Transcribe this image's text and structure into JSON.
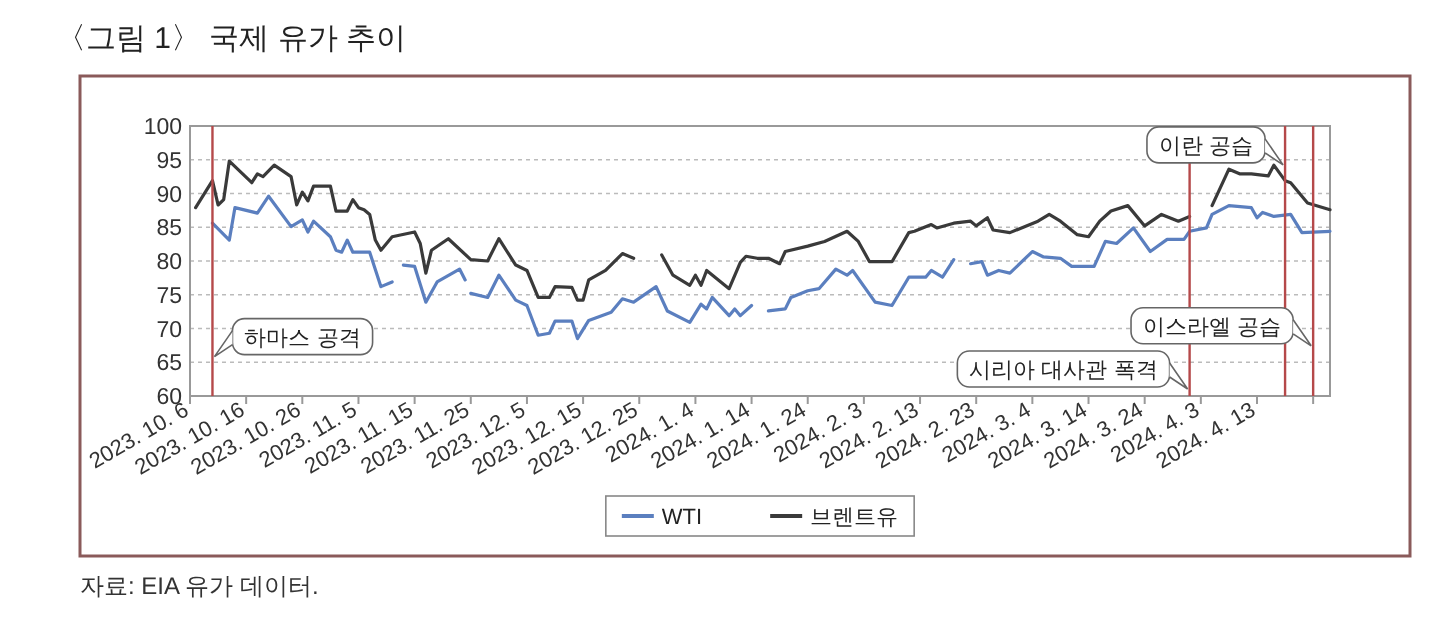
{
  "chart_data": {
    "type": "line",
    "title": "〈그림 1〉 국제 유가 추이",
    "annotations": [
      "자료: EIA 유가 데이터."
    ],
    "xlim": [
      "2023-10-06",
      "2024-04-26"
    ],
    "ylim": [
      60,
      100
    ],
    "yticks": [
      60,
      65,
      70,
      75,
      80,
      85,
      90,
      95,
      100
    ],
    "xticks": [
      {
        "value": "2023-10-06",
        "label": "2023. 10. 6"
      },
      {
        "value": "2023-10-16",
        "label": "2023. 10. 16"
      },
      {
        "value": "2023-10-26",
        "label": "2023. 10. 26"
      },
      {
        "value": "2023-11-05",
        "label": "2023. 11. 5"
      },
      {
        "value": "2023-11-15",
        "label": "2023. 11. 15"
      },
      {
        "value": "2023-11-25",
        "label": "2023. 11. 25"
      },
      {
        "value": "2023-12-05",
        "label": "2023. 12. 5"
      },
      {
        "value": "2023-12-15",
        "label": "2023. 12. 15"
      },
      {
        "value": "2023-12-25",
        "label": "2023. 12. 25"
      },
      {
        "value": "2024-01-04",
        "label": "2024. 1. 4"
      },
      {
        "value": "2024-01-14",
        "label": "2024. 1. 14"
      },
      {
        "value": "2024-01-24",
        "label": "2024. 1. 24"
      },
      {
        "value": "2024-02-03",
        "label": "2024. 2. 3"
      },
      {
        "value": "2024-02-13",
        "label": "2024. 2. 13"
      },
      {
        "value": "2024-02-23",
        "label": "2024. 2. 23"
      },
      {
        "value": "2024-03-04",
        "label": "2024. 3. 4"
      },
      {
        "value": "2024-03-14",
        "label": "2024. 3. 14"
      },
      {
        "value": "2024-03-24",
        "label": "2024. 3. 24"
      },
      {
        "value": "2024-04-03",
        "label": "2024. 4. 3"
      },
      {
        "value": "2024-04-13",
        "label": "2024. 4. 13"
      },
      {
        "value": "2024-04-23",
        "label": null
      }
    ],
    "grid": "y",
    "legend": "bottom",
    "ref_lines": [
      {
        "axis": "x",
        "value": "2023-10-10",
        "label": "하마스 공격",
        "color": "#b5494a"
      },
      {
        "axis": "x",
        "value": "2024-04-01",
        "label": "시리아 대사관 폭격",
        "color": "#b5494a"
      },
      {
        "axis": "x",
        "value": "2024-04-18",
        "label": "이란 공습",
        "color": "#b5494a"
      },
      {
        "axis": "x",
        "value": "2024-04-23",
        "label": "이스라엘 공습",
        "color": "#b5494a"
      }
    ],
    "series": [
      {
        "name": "WTI",
        "color": "#5b7fbf",
        "x": [
          "2023-10-10",
          "2023-10-13",
          "2023-10-14",
          "2023-10-18",
          "2023-10-20",
          "2023-10-24",
          "2023-10-26",
          "2023-10-27",
          "2023-10-28",
          "2023-10-31",
          "2023-11-01",
          "2023-11-02",
          "2023-11-03",
          "2023-11-04",
          "2023-11-07",
          "2023-11-09",
          "2023-11-11",
          "2023-11-12",
          "2023-11-13",
          "2023-11-15",
          "2023-11-17",
          "2023-11-19",
          "2023-11-23",
          "2023-11-24",
          "2023-11-24T12:00",
          "2023-11-25",
          "2023-11-28",
          "2023-11-30",
          "2023-12-03",
          "2023-12-05",
          "2023-12-07",
          "2023-12-09",
          "2023-12-10",
          "2023-12-13",
          "2023-12-14",
          "2023-12-16",
          "2023-12-20",
          "2023-12-22",
          "2023-12-24",
          "2023-12-28",
          "2023-12-30",
          "2024-01-03",
          "2024-01-05",
          "2024-01-06",
          "2024-01-07",
          "2024-01-10",
          "2024-01-11",
          "2024-01-12",
          "2024-01-14",
          "2024-01-15",
          "2024-01-17",
          "2024-01-20",
          "2024-01-21",
          "2024-01-24",
          "2024-01-26",
          "2024-01-29",
          "2024-01-31",
          "2024-02-01",
          "2024-02-05",
          "2024-02-08",
          "2024-02-11",
          "2024-02-14",
          "2024-02-15",
          "2024-02-17",
          "2024-02-19",
          "2024-02-20",
          "2024-02-22",
          "2024-02-24",
          "2024-02-25",
          "2024-02-27",
          "2024-02-29",
          "2024-03-04",
          "2024-03-06",
          "2024-03-09",
          "2024-03-11",
          "2024-03-15",
          "2024-03-17",
          "2024-03-19",
          "2024-03-22",
          "2024-03-25",
          "2024-03-28",
          "2024-03-31",
          "2024-04-01",
          "2024-04-04",
          "2024-04-05",
          "2024-04-08",
          "2024-04-12",
          "2024-04-13",
          "2024-04-14",
          "2024-04-16",
          "2024-04-19",
          "2024-04-21",
          "2024-04-26"
        ],
        "values": [
          85.6,
          83.1,
          87.9,
          87.1,
          89.6,
          85.1,
          86.1,
          84.3,
          85.9,
          83.6,
          81.6,
          81.3,
          83.1,
          81.3,
          81.3,
          76.2,
          76.9,
          null,
          79.4,
          79.2,
          73.9,
          76.9,
          78.8,
          77.2,
          null,
          75.2,
          74.6,
          77.9,
          74.2,
          73.4,
          69,
          69.3,
          71.1,
          71.1,
          68.5,
          71.2,
          72.4,
          74.4,
          73.9,
          76.2,
          72.6,
          70.9,
          73.6,
          72.9,
          74.6,
          71.9,
          72.9,
          71.9,
          73.4,
          null,
          72.6,
          72.9,
          74.6,
          75.6,
          75.9,
          78.8,
          77.9,
          78.6,
          73.9,
          73.4,
          77.6,
          77.6,
          78.6,
          77.6,
          80.2,
          null,
          79.6,
          79.9,
          77.9,
          78.6,
          78.2,
          81.4,
          80.6,
          80.4,
          79.2,
          79.2,
          82.9,
          82.6,
          84.9,
          81.4,
          83.2,
          83.2,
          84.4,
          84.9,
          86.9,
          88.2,
          87.9,
          86.4,
          87.2,
          86.6,
          86.9,
          84.2,
          84.4
        ]
      },
      {
        "name": "브렌트유",
        "color": "#3a3a3a",
        "x": [
          "2023-10-07",
          "2023-10-10",
          "2023-10-11",
          "2023-10-12",
          "2023-10-13",
          "2023-10-17",
          "2023-10-18",
          "2023-10-19",
          "2023-10-21",
          "2023-10-24",
          "2023-10-25",
          "2023-10-26",
          "2023-10-27",
          "2023-10-28",
          "2023-10-31",
          "2023-11-01",
          "2023-11-03",
          "2023-11-04",
          "2023-11-05",
          "2023-11-06",
          "2023-11-07",
          "2023-11-08",
          "2023-11-09",
          "2023-11-11",
          "2023-11-15",
          "2023-11-16",
          "2023-11-17",
          "2023-11-18",
          "2023-11-21",
          "2023-11-25",
          "2023-11-28",
          "2023-11-30",
          "2023-12-03",
          "2023-12-05",
          "2023-12-07",
          "2023-12-09",
          "2023-12-10",
          "2023-12-13",
          "2023-12-14",
          "2023-12-15",
          "2023-12-16",
          "2023-12-19",
          "2023-12-22",
          "2023-12-24",
          "2023-12-26",
          "2023-12-29",
          "2023-12-31",
          "2024-01-03",
          "2024-01-04",
          "2024-01-05",
          "2024-01-06",
          "2024-01-10",
          "2024-01-12",
          "2024-01-13",
          "2024-01-15",
          "2024-01-17",
          "2024-01-19",
          "2024-01-20",
          "2024-01-24",
          "2024-01-27",
          "2024-01-31",
          "2024-02-02",
          "2024-02-04",
          "2024-02-08",
          "2024-02-11",
          "2024-02-12",
          "2024-02-15",
          "2024-02-16",
          "2024-02-19",
          "2024-02-22",
          "2024-02-23",
          "2024-02-25",
          "2024-02-26",
          "2024-02-29",
          "2024-03-05",
          "2024-03-07",
          "2024-03-09",
          "2024-03-12",
          "2024-03-14",
          "2024-03-16",
          "2024-03-18",
          "2024-03-21",
          "2024-03-24",
          "2024-03-27",
          "2024-03-30",
          "2024-04-01",
          "2024-04-03",
          "2024-04-05",
          "2024-04-08",
          "2024-04-10",
          "2024-04-12",
          "2024-04-15",
          "2024-04-16",
          "2024-04-18",
          "2024-04-19",
          "2024-04-22",
          "2024-04-26"
        ],
        "values": [
          87.9,
          91.9,
          88.3,
          89.1,
          94.8,
          91.6,
          92.9,
          92.5,
          94.2,
          92.5,
          88.3,
          90.2,
          88.9,
          91.1,
          91.1,
          87.4,
          87.4,
          89.1,
          87.9,
          87.6,
          86.9,
          83.1,
          81.6,
          83.6,
          84.3,
          82.6,
          78.2,
          81.6,
          83.3,
          80.2,
          80,
          83.3,
          79.4,
          78.6,
          74.6,
          74.6,
          76.2,
          76.1,
          74.2,
          74.2,
          77.2,
          78.6,
          81.1,
          80.4,
          null,
          80.9,
          77.9,
          76.4,
          77.9,
          76.4,
          78.6,
          75.9,
          79.8,
          80.7,
          80.4,
          80.4,
          79.6,
          81.4,
          82.2,
          82.9,
          84.4,
          82.9,
          79.9,
          79.9,
          84.2,
          84.4,
          85.4,
          84.9,
          85.6,
          85.9,
          85.2,
          86.4,
          84.6,
          84.2,
          85.9,
          86.9,
          85.9,
          83.9,
          83.6,
          85.9,
          87.4,
          88.2,
          85.2,
          86.9,
          85.9,
          86.6,
          null,
          88.2,
          93.6,
          92.9,
          92.9,
          92.6,
          94.2,
          91.9,
          91.6,
          88.6,
          87.6
        ]
      }
    ]
  }
}
